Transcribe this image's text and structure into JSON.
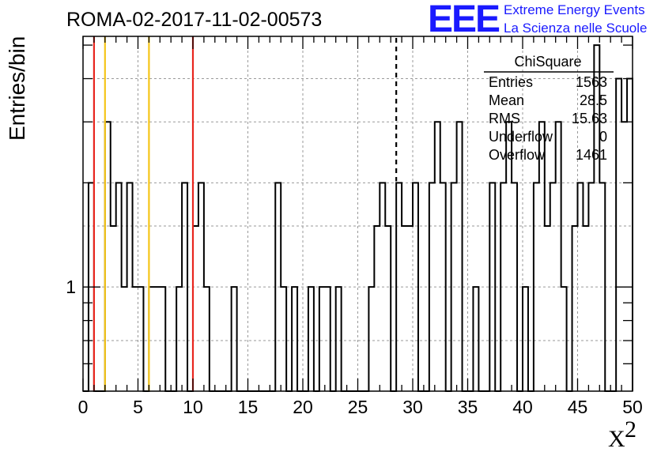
{
  "chart_data": {
    "type": "histogram",
    "title": "ROMA-02-2017-11-02-00573",
    "xlabel": "X",
    "xlabel_superscript": "2",
    "ylabel": "Entries/bin",
    "y_scale": "log",
    "xlim": [
      0,
      50
    ],
    "ylim": [
      0.5,
      5.3
    ],
    "bin_width": 0.5,
    "x_ticks": [
      "0",
      "5",
      "10",
      "15",
      "20",
      "25",
      "30",
      "35",
      "40",
      "45",
      "50"
    ],
    "y_ticks": [
      "1"
    ],
    "grid": true,
    "bins": [
      [
        0.5,
        2
      ],
      [
        2,
        3
      ],
      [
        2.5,
        1.5
      ],
      [
        3,
        2
      ],
      [
        3.5,
        1
      ],
      [
        4,
        2
      ],
      [
        4.5,
        1
      ],
      [
        5,
        1
      ],
      [
        6,
        1
      ],
      [
        6.5,
        1
      ],
      [
        7,
        1
      ],
      [
        8.5,
        1
      ],
      [
        9,
        2
      ],
      [
        10,
        1.5
      ],
      [
        10.5,
        2
      ],
      [
        11,
        1
      ],
      [
        13.5,
        1
      ],
      [
        17.5,
        2
      ],
      [
        18,
        1
      ],
      [
        19,
        1
      ],
      [
        20.5,
        1
      ],
      [
        21.5,
        1
      ],
      [
        22,
        1
      ],
      [
        23,
        1
      ],
      [
        26,
        1
      ],
      [
        26.5,
        1.5
      ],
      [
        27,
        2
      ],
      [
        27.5,
        1.5
      ],
      [
        28.5,
        2
      ],
      [
        29,
        1.5
      ],
      [
        29.5,
        1.5
      ],
      [
        30,
        2
      ],
      [
        31.5,
        2
      ],
      [
        31.5,
        2
      ],
      [
        32,
        3
      ],
      [
        32.5,
        2
      ],
      [
        33.5,
        2
      ],
      [
        34,
        3
      ],
      [
        35.5,
        1
      ],
      [
        37,
        2
      ],
      [
        38,
        2
      ],
      [
        38.5,
        3
      ],
      [
        39,
        2
      ],
      [
        40,
        1
      ],
      [
        41,
        2
      ],
      [
        41.5,
        3
      ],
      [
        42,
        1.5
      ],
      [
        42.5,
        2
      ],
      [
        43,
        3
      ],
      [
        43.5,
        1
      ],
      [
        44.5,
        1.5
      ],
      [
        45,
        2
      ],
      [
        45.5,
        1.5
      ],
      [
        46,
        2
      ],
      [
        46.5,
        5
      ],
      [
        47,
        2
      ],
      [
        48.5,
        4
      ],
      [
        49,
        3
      ],
      [
        49.5,
        4
      ]
    ],
    "vertical_lines": [
      {
        "x": 1,
        "color": "#e8261e",
        "style": "solid"
      },
      {
        "x": 2,
        "color": "#f5c518",
        "style": "solid"
      },
      {
        "x": 6,
        "color": "#f5c518",
        "style": "solid"
      },
      {
        "x": 10,
        "color": "#e8261e",
        "style": "solid"
      },
      {
        "x": 28.5,
        "color": "#000000",
        "style": "dashed"
      }
    ],
    "stats_box": {
      "title": "ChiSquare",
      "rows": [
        {
          "label": "Entries",
          "value": "1563"
        },
        {
          "label": "Mean",
          "value": "28.5"
        },
        {
          "label": "RMS",
          "value": "15.63"
        },
        {
          "label": "Underflow",
          "value": "0"
        },
        {
          "label": "Overflow",
          "value": "1461"
        }
      ]
    }
  },
  "logo": {
    "mark": "EEE",
    "line1": "Extreme Energy Events",
    "line2": "La Scienza nelle Scuole"
  },
  "colors": {
    "logo": "#1a1aff",
    "red_line": "#e8261e",
    "yellow_line": "#f5c518",
    "grid": "#9a9a9a"
  }
}
